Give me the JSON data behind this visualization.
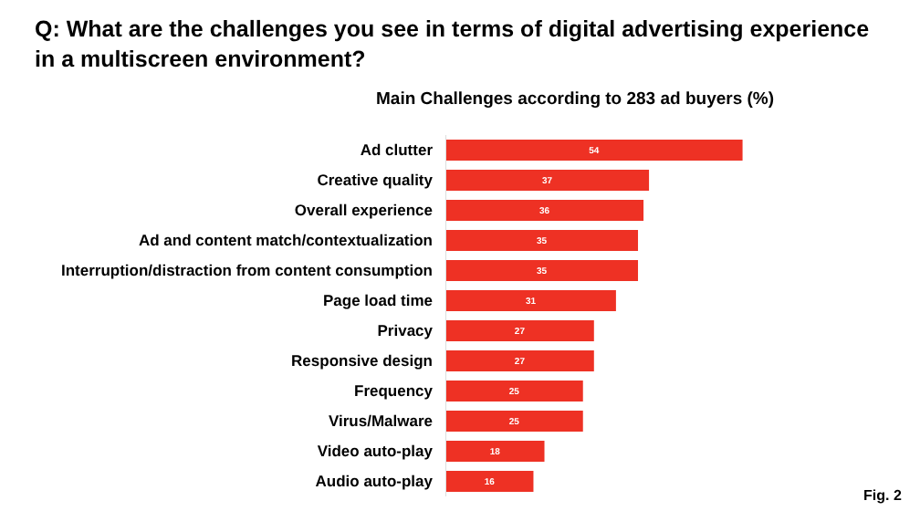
{
  "chart_data": {
    "type": "bar",
    "orientation": "horizontal",
    "title": "Q: What are the challenges you see in terms of digital advertising experience in a multiscreen environment?",
    "subtitle": "Main Challenges according to 283 ad buyers (%)",
    "categories": [
      "Ad clutter",
      "Creative quality",
      "Overall experience",
      "Ad and content match/contextualization",
      "Interruption/distraction from content consumption",
      "Page load time",
      "Privacy",
      "Responsive design",
      "Frequency",
      "Virus/Malware",
      "Video auto-play",
      "Audio auto-play"
    ],
    "values": [
      54,
      37,
      36,
      35,
      35,
      31,
      27,
      27,
      25,
      25,
      18,
      16
    ],
    "color": "#ee3124",
    "data_labels": true,
    "tick_labels": "y",
    "annotations": [
      "Fig. 2"
    ]
  }
}
